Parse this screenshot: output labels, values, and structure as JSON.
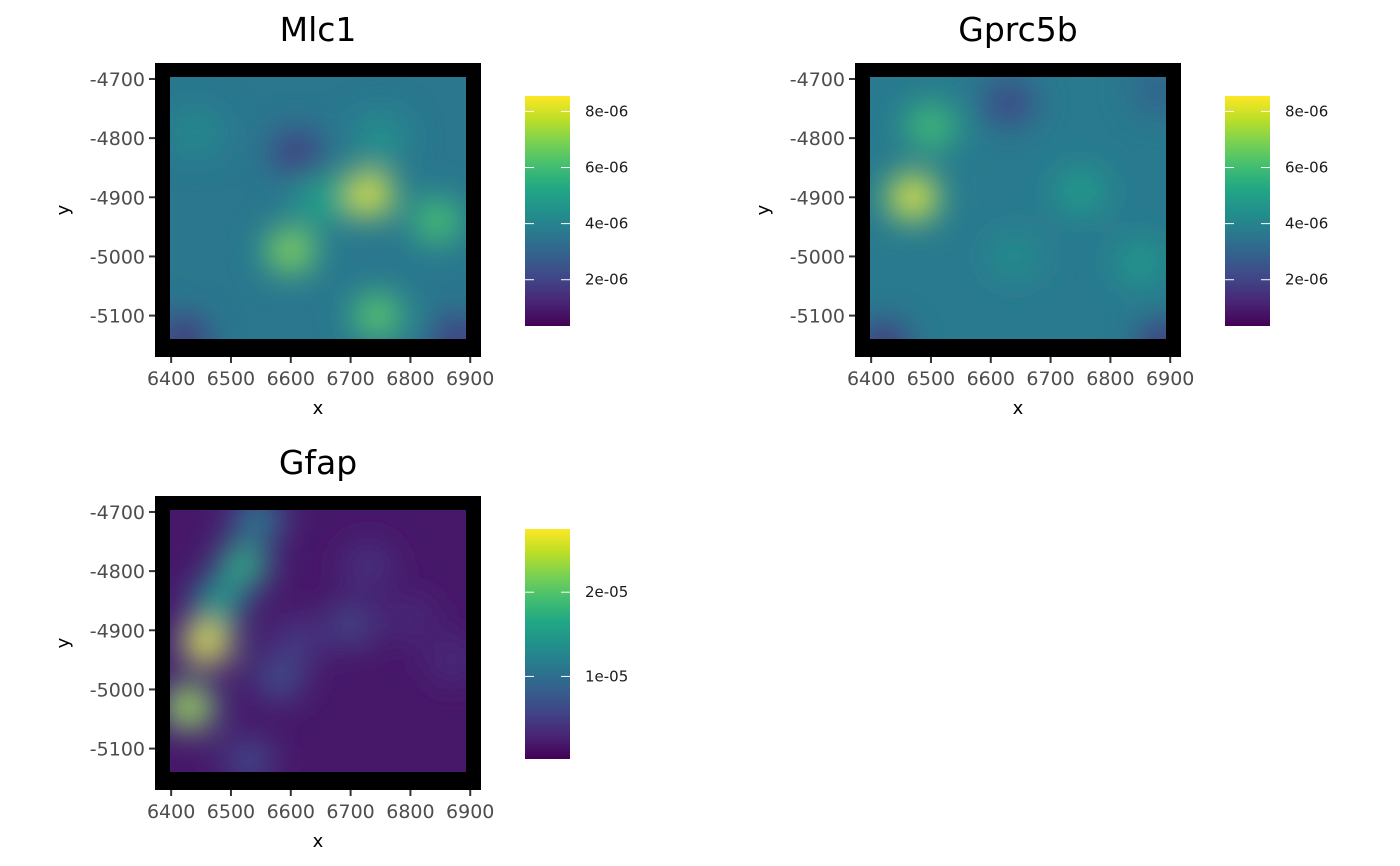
{
  "chart_data": [
    {
      "type": "heatmap",
      "title": "Mlc1",
      "xlabel": "x",
      "ylabel": "y",
      "x_ticks": [
        "6400",
        "6500",
        "6600",
        "6700",
        "6800",
        "6900"
      ],
      "y_ticks": [
        "-4700",
        "-4800",
        "-4900",
        "-5000",
        "-5100"
      ],
      "xlim": [
        6373,
        6918
      ],
      "ylim": [
        -5170,
        -4673
      ],
      "colorbar": {
        "min": 3.5e-07,
        "max": 8.55e-06,
        "ticks": [
          2e-06,
          4e-06,
          6e-06,
          8e-06
        ],
        "tick_labels": [
          "2e-06",
          "4e-06",
          "6e-06",
          "8e-06"
        ]
      },
      "baseline": 3.6e-06,
      "hotspots": [
        {
          "x": 6730,
          "y": -4895,
          "value": 8.5e-06
        },
        {
          "x": 6600,
          "y": -4990,
          "value": 7.2e-06
        },
        {
          "x": 6745,
          "y": -5100,
          "value": 6.6e-06
        },
        {
          "x": 6845,
          "y": -4940,
          "value": 6.3e-06
        },
        {
          "x": 6650,
          "y": -4905,
          "value": 5.2e-06
        },
        {
          "x": 6750,
          "y": -4800,
          "value": 4.6e-06
        },
        {
          "x": 6440,
          "y": -4790,
          "value": 4.3e-06
        },
        {
          "x": 6610,
          "y": -4825,
          "value": 1.6e-06
        },
        {
          "x": 6420,
          "y": -5140,
          "value": 1.2e-06
        },
        {
          "x": 6880,
          "y": -5140,
          "value": 1.4e-06
        }
      ]
    },
    {
      "type": "heatmap",
      "title": "Gprc5b",
      "xlabel": "x",
      "ylabel": "y",
      "x_ticks": [
        "6400",
        "6500",
        "6600",
        "6700",
        "6800",
        "6900"
      ],
      "y_ticks": [
        "-4700",
        "-4800",
        "-4900",
        "-5000",
        "-5100"
      ],
      "xlim": [
        6373,
        6918
      ],
      "ylim": [
        -5170,
        -4673
      ],
      "colorbar": {
        "min": 3.5e-07,
        "max": 8.55e-06,
        "ticks": [
          2e-06,
          4e-06,
          6e-06,
          8e-06
        ],
        "tick_labels": [
          "2e-06",
          "4e-06",
          "6e-06",
          "8e-06"
        ]
      },
      "baseline": 3.7e-06,
      "hotspots": [
        {
          "x": 6470,
          "y": -4900,
          "value": 8.5e-06
        },
        {
          "x": 6500,
          "y": -4780,
          "value": 6.2e-06
        },
        {
          "x": 6750,
          "y": -4890,
          "value": 5e-06
        },
        {
          "x": 6850,
          "y": -5010,
          "value": 4.8e-06
        },
        {
          "x": 6640,
          "y": -5000,
          "value": 4.4e-06
        },
        {
          "x": 6630,
          "y": -4740,
          "value": 1.8e-06
        },
        {
          "x": 6420,
          "y": -5150,
          "value": 1.2e-06
        },
        {
          "x": 6890,
          "y": -5150,
          "value": 1.2e-06
        },
        {
          "x": 6880,
          "y": -4720,
          "value": 2.8e-06
        }
      ]
    },
    {
      "type": "heatmap",
      "title": "Gfap",
      "xlabel": "x",
      "ylabel": "y",
      "x_ticks": [
        "6400",
        "6500",
        "6600",
        "6700",
        "6800",
        "6900"
      ],
      "y_ticks": [
        "-4700",
        "-4800",
        "-4900",
        "-5000",
        "-5100"
      ],
      "xlim": [
        6373,
        6918
      ],
      "ylim": [
        -5170,
        -4673
      ],
      "colorbar": {
        "min": 2e-07,
        "max": 2.75e-05,
        "ticks": [
          1e-05,
          2e-05
        ],
        "tick_labels": [
          "1e-05",
          "2e-05"
        ]
      },
      "baseline": 2e-06,
      "hotspots": [
        {
          "x": 6460,
          "y": -4920,
          "value": 2.75e-05
        },
        {
          "x": 6430,
          "y": -5030,
          "value": 2.45e-05
        },
        {
          "x": 6520,
          "y": -4790,
          "value": 1.8e-05
        },
        {
          "x": 6545,
          "y": -4710,
          "value": 1.2e-05
        },
        {
          "x": 6480,
          "y": -4850,
          "value": 1.6e-05
        },
        {
          "x": 6580,
          "y": -4980,
          "value": 7e-06
        },
        {
          "x": 6700,
          "y": -4890,
          "value": 6e-06
        },
        {
          "x": 6530,
          "y": -5120,
          "value": 6.5e-06
        },
        {
          "x": 6610,
          "y": -4920,
          "value": 5e-06
        },
        {
          "x": 6730,
          "y": -4790,
          "value": 4.5e-06
        },
        {
          "x": 6800,
          "y": -4880,
          "value": 3.5e-06
        },
        {
          "x": 6870,
          "y": -4950,
          "value": 3.8e-06
        }
      ]
    }
  ]
}
